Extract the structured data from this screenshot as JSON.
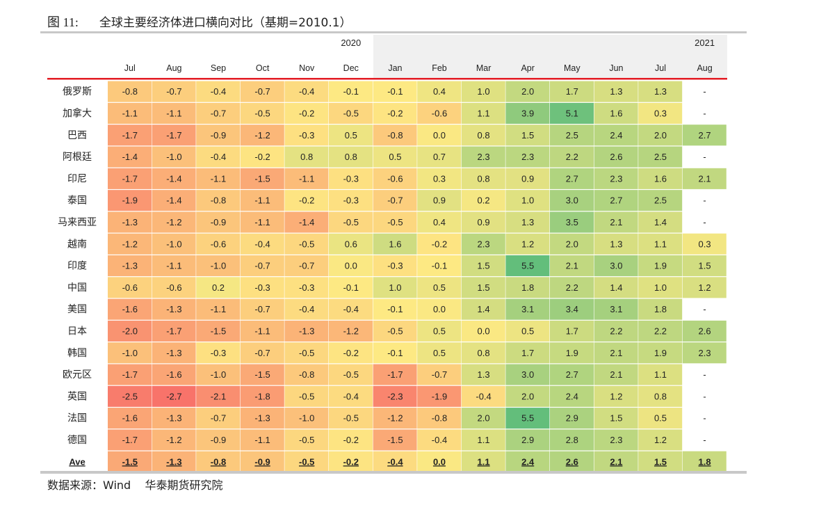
{
  "title": {
    "figure_no": "图 11:",
    "text": "全球主要经济体进口横向对比（基期=2010.1）"
  },
  "source": "数据来源：Wind    华泰期货研究院",
  "colors": {
    "low": "#f8736a",
    "mid": "#fde983",
    "high": "#63be7b",
    "header_band": "#f0f0f0",
    "red_rule": "#e31b23",
    "gray_rule": "#c8c8c8"
  },
  "chart_data": {
    "type": "heatmap",
    "year_labels": [
      {
        "label": "2020",
        "col": 5
      },
      {
        "label": "2021",
        "col": 13
      }
    ],
    "columns": [
      "Jul",
      "Aug",
      "Sep",
      "Oct",
      "Nov",
      "Dec",
      "Jan",
      "Feb",
      "Mar",
      "Apr",
      "May",
      "Jun",
      "Jul",
      "Aug"
    ],
    "rows": [
      {
        "name": "俄罗斯",
        "values": [
          "-0.8",
          "-0.7",
          "-0.4",
          "-0.7",
          "-0.4",
          "-0.1",
          "-0.1",
          "0.4",
          "1.0",
          "2.0",
          "1.7",
          "1.3",
          "1.3",
          "-"
        ]
      },
      {
        "name": "加拿大",
        "values": [
          "-1.1",
          "-1.1",
          "-0.7",
          "-0.5",
          "-0.2",
          "-0.5",
          "-0.2",
          "-0.6",
          "1.1",
          "3.9",
          "5.1",
          "1.6",
          "0.3",
          "-"
        ]
      },
      {
        "name": "巴西",
        "values": [
          "-1.7",
          "-1.7",
          "-0.9",
          "-1.2",
          "-0.3",
          "0.5",
          "-0.8",
          "0.0",
          "0.8",
          "1.5",
          "2.5",
          "2.4",
          "2.0",
          "2.7"
        ]
      },
      {
        "name": "阿根廷",
        "values": [
          "-1.4",
          "-1.0",
          "-0.4",
          "-0.2",
          "0.8",
          "0.8",
          "0.5",
          "0.7",
          "2.3",
          "2.3",
          "2.2",
          "2.6",
          "2.5",
          "-"
        ]
      },
      {
        "name": "印尼",
        "values": [
          "-1.7",
          "-1.4",
          "-1.1",
          "-1.5",
          "-1.1",
          "-0.3",
          "-0.6",
          "0.3",
          "0.8",
          "0.9",
          "2.7",
          "2.3",
          "1.6",
          "2.1"
        ]
      },
      {
        "name": "泰国",
        "values": [
          "-1.9",
          "-1.4",
          "-0.8",
          "-1.1",
          "-0.2",
          "-0.3",
          "-0.7",
          "0.9",
          "0.2",
          "1.0",
          "3.0",
          "2.7",
          "2.5",
          "-"
        ]
      },
      {
        "name": "马来西亚",
        "values": [
          "-1.3",
          "-1.2",
          "-0.9",
          "-1.1",
          "-1.4",
          "-0.5",
          "-0.5",
          "0.4",
          "0.9",
          "1.3",
          "3.5",
          "2.1",
          "1.4",
          "-"
        ]
      },
      {
        "name": "越南",
        "values": [
          "-1.2",
          "-1.0",
          "-0.6",
          "-0.4",
          "-0.5",
          "0.6",
          "1.6",
          "-0.2",
          "2.3",
          "1.2",
          "2.0",
          "1.3",
          "1.1",
          "0.3"
        ]
      },
      {
        "name": "印度",
        "values": [
          "-1.3",
          "-1.1",
          "-1.0",
          "-0.7",
          "-0.7",
          "0.0",
          "-0.3",
          "-0.1",
          "1.5",
          "5.5",
          "2.1",
          "3.0",
          "1.9",
          "1.5"
        ]
      },
      {
        "name": "中国",
        "values": [
          "-0.6",
          "-0.6",
          "0.2",
          "-0.3",
          "-0.3",
          "-0.1",
          "1.0",
          "0.5",
          "1.5",
          "1.8",
          "2.2",
          "1.4",
          "1.0",
          "1.2"
        ]
      },
      {
        "name": "美国",
        "values": [
          "-1.6",
          "-1.3",
          "-1.1",
          "-0.7",
          "-0.4",
          "-0.4",
          "-0.1",
          "0.0",
          "1.4",
          "3.1",
          "3.4",
          "3.1",
          "1.8",
          "-"
        ]
      },
      {
        "name": "日本",
        "values": [
          "-2.0",
          "-1.7",
          "-1.5",
          "-1.1",
          "-1.3",
          "-1.2",
          "-0.5",
          "0.5",
          "0.0",
          "0.5",
          "1.7",
          "2.2",
          "2.2",
          "2.6"
        ]
      },
      {
        "name": "韩国",
        "values": [
          "-1.0",
          "-1.3",
          "-0.3",
          "-0.7",
          "-0.5",
          "-0.2",
          "-0.1",
          "0.5",
          "0.8",
          "1.7",
          "1.9",
          "2.1",
          "1.9",
          "2.3"
        ]
      },
      {
        "name": "欧元区",
        "values": [
          "-1.7",
          "-1.6",
          "-1.0",
          "-1.5",
          "-0.8",
          "-0.5",
          "-1.7",
          "-0.7",
          "1.3",
          "3.0",
          "2.7",
          "2.1",
          "1.1",
          "-"
        ]
      },
      {
        "name": "英国",
        "values": [
          "-2.5",
          "-2.7",
          "-2.1",
          "-1.8",
          "-0.5",
          "-0.4",
          "-2.3",
          "-1.9",
          "-0.4",
          "2.0",
          "2.4",
          "1.2",
          "0.8",
          "-"
        ]
      },
      {
        "name": "法国",
        "values": [
          "-1.6",
          "-1.3",
          "-0.7",
          "-1.3",
          "-1.0",
          "-0.5",
          "-1.2",
          "-0.8",
          "2.0",
          "5.5",
          "2.9",
          "1.5",
          "0.5",
          "-"
        ]
      },
      {
        "name": "德国",
        "values": [
          "-1.7",
          "-1.2",
          "-0.9",
          "-1.1",
          "-0.5",
          "-0.2",
          "-1.5",
          "-0.4",
          "1.1",
          "2.9",
          "2.8",
          "2.3",
          "1.2",
          "-"
        ]
      }
    ],
    "summary_row": {
      "name": "Ave",
      "values": [
        "-1.5",
        "-1.3",
        "-0.8",
        "-0.9",
        "-0.5",
        "-0.2",
        "-0.4",
        "0.0",
        "1.1",
        "2.4",
        "2.6",
        "2.1",
        "1.5",
        "1.8"
      ]
    }
  }
}
